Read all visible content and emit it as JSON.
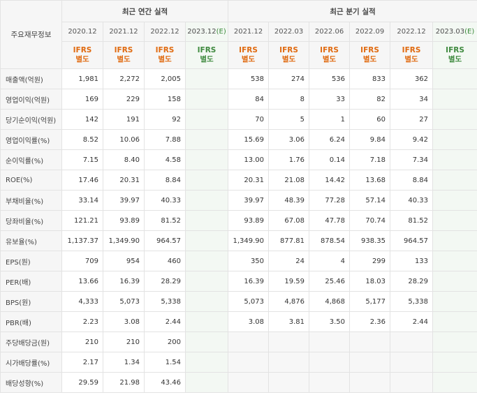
{
  "header": {
    "annual_group": "최근 연간 실적",
    "quarter_group": "최근 분기 실적",
    "row_header": "주요재무정보",
    "annual_periods": [
      "2020.12",
      "2021.12",
      "2022.12",
      "2023.12(E)"
    ],
    "quarter_periods": [
      "2021.12",
      "2022.03",
      "2022.06",
      "2022.09",
      "2022.12",
      "2023.03(E)"
    ],
    "ifrs_top": "IFRS",
    "ifrs_bottom": "별도"
  },
  "rows": [
    {
      "label": "매출액(억원)",
      "annual": [
        "1,981",
        "2,272",
        "2,005",
        ""
      ],
      "quarter": [
        "538",
        "274",
        "536",
        "833",
        "362",
        ""
      ]
    },
    {
      "label": "영업이익(억원)",
      "annual": [
        "169",
        "229",
        "158",
        ""
      ],
      "quarter": [
        "84",
        "8",
        "33",
        "82",
        "34",
        ""
      ]
    },
    {
      "label": "당기순이익(억원)",
      "annual": [
        "142",
        "191",
        "92",
        ""
      ],
      "quarter": [
        "70",
        "5",
        "1",
        "60",
        "27",
        ""
      ]
    },
    {
      "label": "영업이익률(%)",
      "annual": [
        "8.52",
        "10.06",
        "7.88",
        ""
      ],
      "quarter": [
        "15.69",
        "3.06",
        "6.24",
        "9.84",
        "9.42",
        ""
      ]
    },
    {
      "label": "순이익률(%)",
      "annual": [
        "7.15",
        "8.40",
        "4.58",
        ""
      ],
      "quarter": [
        "13.00",
        "1.76",
        "0.14",
        "7.18",
        "7.34",
        ""
      ]
    },
    {
      "label": "ROE(%)",
      "annual": [
        "17.46",
        "20.31",
        "8.84",
        ""
      ],
      "quarter": [
        "20.31",
        "21.08",
        "14.42",
        "13.68",
        "8.84",
        ""
      ]
    },
    {
      "label": "부채비율(%)",
      "annual": [
        "33.14",
        "39.97",
        "40.33",
        ""
      ],
      "quarter": [
        "39.97",
        "48.39",
        "77.28",
        "57.14",
        "40.33",
        ""
      ]
    },
    {
      "label": "당좌비율(%)",
      "annual": [
        "121.21",
        "93.89",
        "81.52",
        ""
      ],
      "quarter": [
        "93.89",
        "67.08",
        "47.78",
        "70.74",
        "81.52",
        ""
      ]
    },
    {
      "label": "유보율(%)",
      "annual": [
        "1,137.37",
        "1,349.90",
        "964.57",
        ""
      ],
      "quarter": [
        "1,349.90",
        "877.81",
        "878.54",
        "938.35",
        "964.57",
        ""
      ]
    },
    {
      "label": "EPS(원)",
      "annual": [
        "709",
        "954",
        "460",
        ""
      ],
      "quarter": [
        "350",
        "24",
        "4",
        "299",
        "133",
        ""
      ]
    },
    {
      "label": "PER(배)",
      "annual": [
        "13.66",
        "16.39",
        "28.29",
        ""
      ],
      "quarter": [
        "16.39",
        "19.59",
        "25.46",
        "18.03",
        "28.29",
        ""
      ]
    },
    {
      "label": "BPS(원)",
      "annual": [
        "4,333",
        "5,073",
        "5,338",
        ""
      ],
      "quarter": [
        "5,073",
        "4,876",
        "4,868",
        "5,177",
        "5,338",
        ""
      ]
    },
    {
      "label": "PBR(배)",
      "annual": [
        "2.23",
        "3.08",
        "2.44",
        ""
      ],
      "quarter": [
        "3.08",
        "3.81",
        "3.50",
        "2.36",
        "2.44",
        ""
      ]
    },
    {
      "label": "주당배당금(원)",
      "annual": [
        "210",
        "210",
        "200",
        ""
      ],
      "quarter": [
        "",
        "",
        "",
        "",
        "",
        ""
      ]
    },
    {
      "label": "시가배당률(%)",
      "annual": [
        "2.17",
        "1.34",
        "1.54",
        ""
      ],
      "quarter": [
        "",
        "",
        "",
        "",
        "",
        ""
      ]
    },
    {
      "label": "배당성향(%)",
      "annual": [
        "29.59",
        "21.98",
        "43.46",
        ""
      ],
      "quarter": [
        "",
        "",
        "",
        "",
        "",
        ""
      ]
    }
  ]
}
